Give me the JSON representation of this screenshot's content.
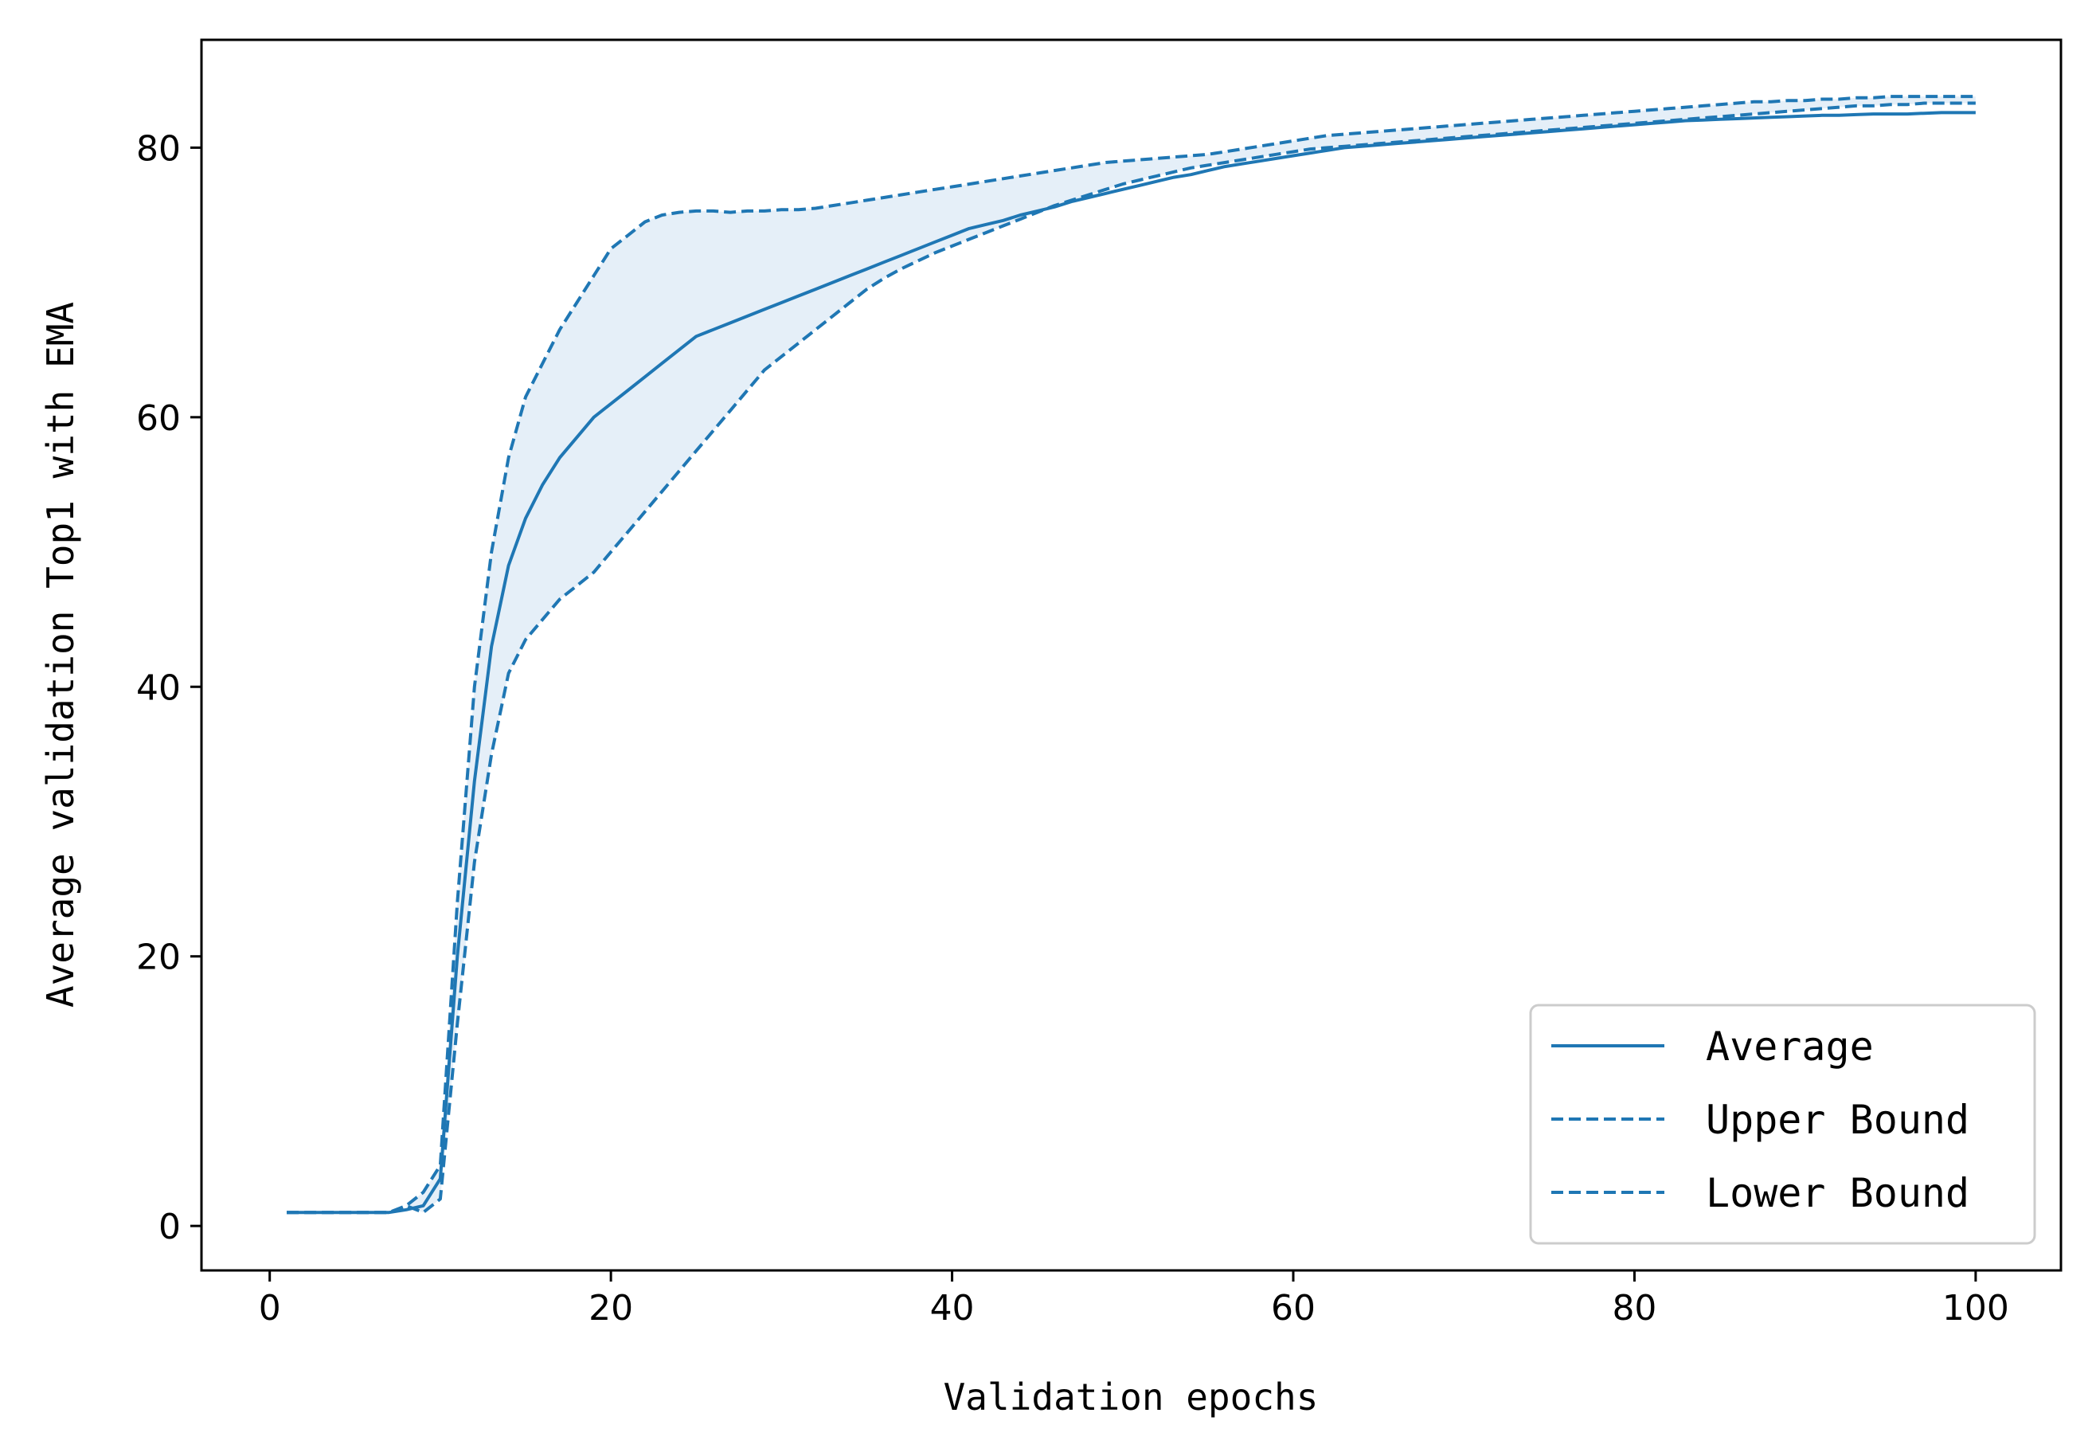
{
  "chart_data": {
    "type": "line",
    "title": "",
    "xlabel": "Validation epochs",
    "ylabel": "Average validation Top1 with EMA",
    "xlim": [
      -4,
      105
    ],
    "ylim": [
      -3.3,
      88
    ],
    "xticks": [
      0,
      20,
      40,
      60,
      80,
      100
    ],
    "yticks": [
      0,
      20,
      40,
      60,
      80
    ],
    "x_tick_labels": [
      "0",
      "20",
      "40",
      "60",
      "80",
      "100"
    ],
    "y_tick_labels": [
      "0",
      "20",
      "40",
      "60",
      "80"
    ],
    "grid": false,
    "legend_position": "lower-right",
    "color": "#1f77b4",
    "band_color": "#dce9f5",
    "x": [
      1,
      2,
      3,
      4,
      5,
      6,
      7,
      8,
      9,
      10,
      11,
      12,
      13,
      14,
      15,
      16,
      17,
      18,
      19,
      20,
      21,
      22,
      23,
      24,
      25,
      26,
      27,
      28,
      29,
      30,
      31,
      32,
      33,
      34,
      35,
      36,
      37,
      38,
      39,
      40,
      41,
      42,
      43,
      44,
      45,
      46,
      47,
      48,
      49,
      50,
      51,
      52,
      53,
      54,
      55,
      56,
      57,
      58,
      59,
      60,
      61,
      62,
      63,
      64,
      65,
      66,
      67,
      68,
      69,
      70,
      71,
      72,
      73,
      74,
      75,
      76,
      77,
      78,
      79,
      80,
      81,
      82,
      83,
      84,
      85,
      86,
      87,
      88,
      89,
      90,
      91,
      92,
      93,
      94,
      95,
      96,
      97,
      98,
      99,
      100
    ],
    "series": [
      {
        "name": "Average",
        "style": "solid",
        "values": [
          1,
          1,
          1,
          1,
          1,
          1,
          1,
          1.2,
          1.5,
          3.5,
          20,
          33,
          43,
          49,
          52.5,
          55,
          57,
          58.5,
          60,
          61,
          62,
          63,
          64,
          65,
          66,
          66.5,
          67,
          67.5,
          68,
          68.5,
          69,
          69.5,
          70,
          70.5,
          71,
          71.5,
          72,
          72.5,
          73,
          73.5,
          74,
          74.3,
          74.6,
          75,
          75.3,
          75.6,
          76,
          76.3,
          76.6,
          76.9,
          77.2,
          77.5,
          77.8,
          78,
          78.3,
          78.6,
          78.8,
          79,
          79.2,
          79.4,
          79.6,
          79.8,
          80,
          80.1,
          80.2,
          80.3,
          80.4,
          80.5,
          80.6,
          80.7,
          80.8,
          80.9,
          81,
          81.1,
          81.2,
          81.3,
          81.4,
          81.5,
          81.6,
          81.7,
          81.8,
          81.9,
          82,
          82.05,
          82.1,
          82.15,
          82.2,
          82.25,
          82.3,
          82.35,
          82.4,
          82.4,
          82.45,
          82.5,
          82.5,
          82.5,
          82.55,
          82.6,
          82.6,
          82.6
        ]
      },
      {
        "name": "Upper Bound",
        "style": "dashed",
        "values": [
          1,
          1,
          1,
          1,
          1,
          1,
          1,
          1.5,
          2.5,
          4.5,
          24,
          40,
          50,
          57,
          61.5,
          64,
          66.5,
          68.5,
          70.5,
          72.5,
          73.5,
          74.5,
          75,
          75.2,
          75.3,
          75.3,
          75.2,
          75.3,
          75.3,
          75.4,
          75.4,
          75.5,
          75.7,
          75.9,
          76.1,
          76.3,
          76.5,
          76.7,
          76.9,
          77.1,
          77.3,
          77.5,
          77.7,
          77.9,
          78.1,
          78.3,
          78.5,
          78.7,
          78.9,
          79,
          79.1,
          79.2,
          79.3,
          79.4,
          79.5,
          79.7,
          79.9,
          80.1,
          80.3,
          80.5,
          80.7,
          80.9,
          81,
          81.1,
          81.2,
          81.3,
          81.4,
          81.5,
          81.6,
          81.7,
          81.8,
          81.9,
          82,
          82.1,
          82.2,
          82.3,
          82.4,
          82.5,
          82.6,
          82.7,
          82.8,
          82.9,
          83,
          83.1,
          83.2,
          83.3,
          83.4,
          83.4,
          83.5,
          83.5,
          83.6,
          83.6,
          83.7,
          83.7,
          83.8,
          83.8,
          83.8,
          83.8,
          83.8,
          83.8
        ]
      },
      {
        "name": "Lower Bound",
        "style": "dashed",
        "values": [
          1,
          1,
          1,
          1,
          1,
          1,
          1,
          1.5,
          1,
          2,
          15,
          27,
          35,
          41,
          43.5,
          45,
          46.5,
          47.5,
          48.5,
          50,
          51.5,
          53,
          54.5,
          56,
          57.5,
          59,
          60.5,
          62,
          63.5,
          64.5,
          65.5,
          66.5,
          67.5,
          68.5,
          69.5,
          70.3,
          71,
          71.6,
          72.2,
          72.7,
          73.2,
          73.7,
          74.2,
          74.7,
          75.2,
          75.7,
          76.1,
          76.5,
          76.9,
          77.3,
          77.6,
          77.9,
          78.2,
          78.5,
          78.7,
          78.9,
          79.1,
          79.3,
          79.5,
          79.7,
          79.9,
          80,
          80.1,
          80.2,
          80.3,
          80.4,
          80.5,
          80.6,
          80.7,
          80.8,
          80.9,
          81,
          81.1,
          81.2,
          81.3,
          81.4,
          81.5,
          81.6,
          81.7,
          81.8,
          81.9,
          82,
          82.1,
          82.2,
          82.3,
          82.4,
          82.5,
          82.6,
          82.7,
          82.8,
          82.9,
          83,
          83.1,
          83.1,
          83.2,
          83.2,
          83.3,
          83.3,
          83.3,
          83.3
        ]
      }
    ]
  }
}
